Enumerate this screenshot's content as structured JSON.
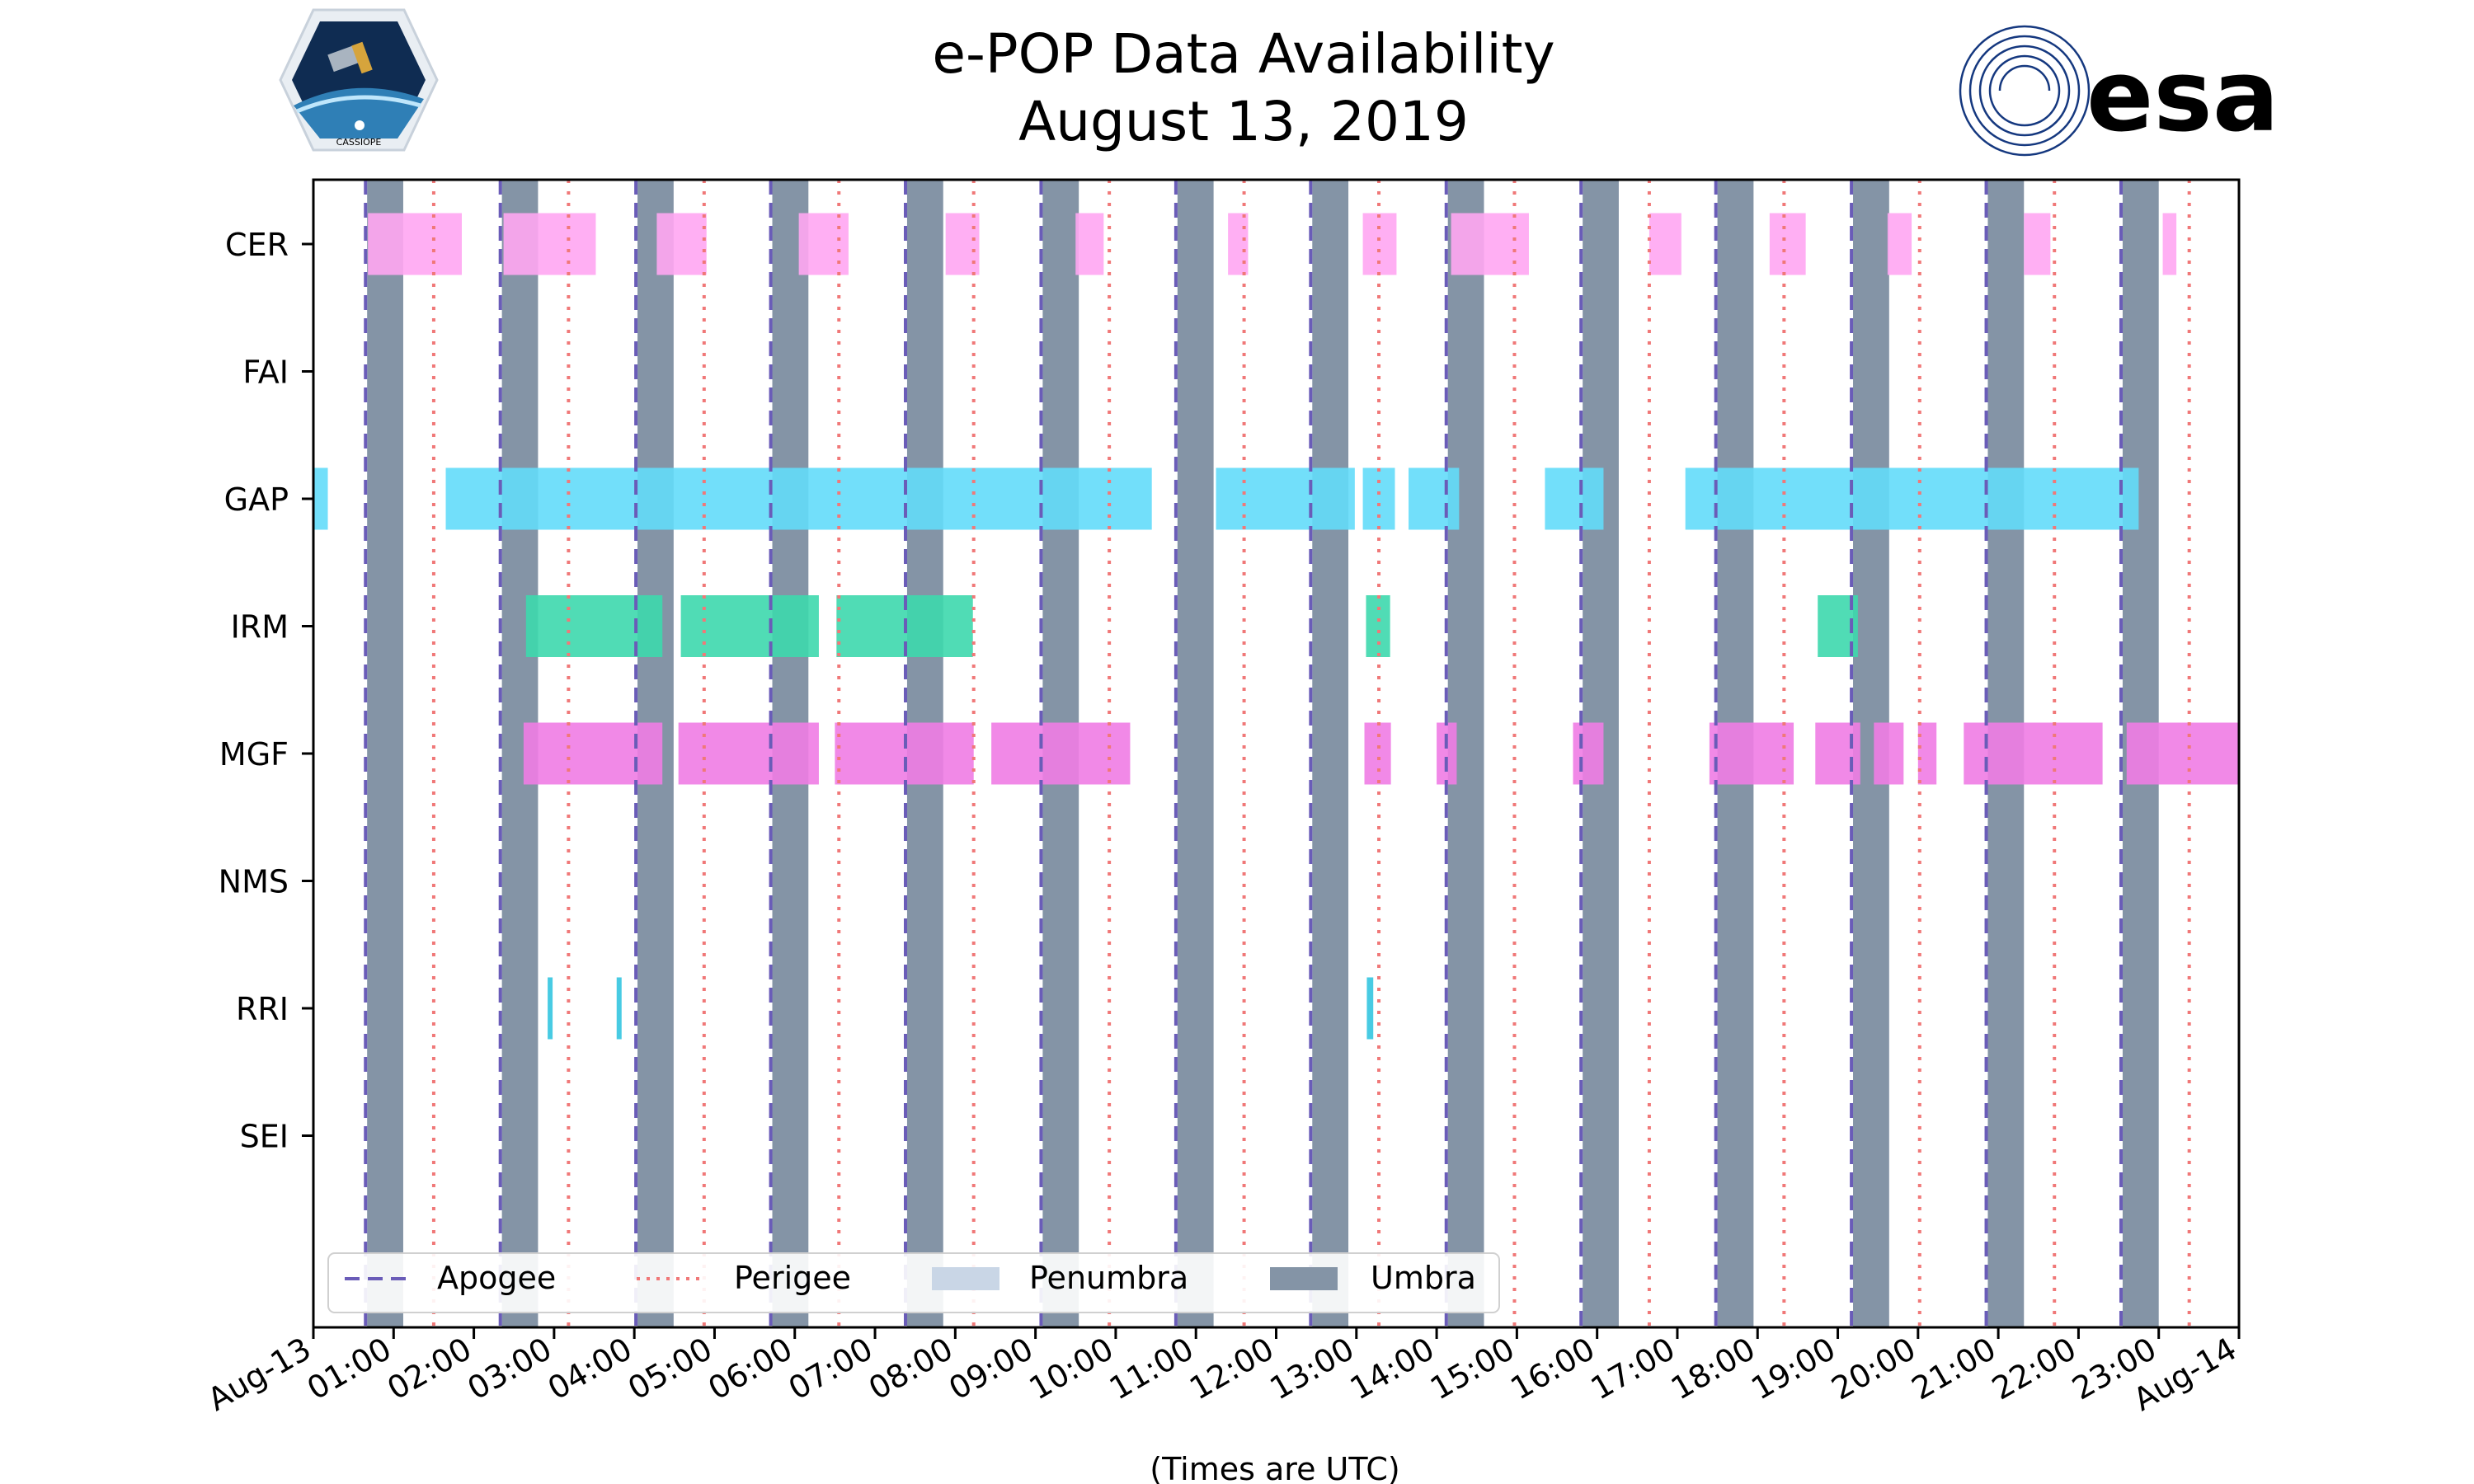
{
  "chart_data": {
    "type": "timeline",
    "title_line1": "e-POP Data Availability",
    "title_line2": "August 13, 2019",
    "xlabel": "(Times are UTC)",
    "x_unit": "hours since 2019-08-13 00:00 UTC",
    "xlim": [
      0,
      24
    ],
    "xtick_labels": [
      "Aug-13",
      "01:00",
      "02:00",
      "03:00",
      "04:00",
      "05:00",
      "06:00",
      "07:00",
      "08:00",
      "09:00",
      "10:00",
      "11:00",
      "12:00",
      "13:00",
      "14:00",
      "15:00",
      "16:00",
      "17:00",
      "18:00",
      "19:00",
      "20:00",
      "21:00",
      "22:00",
      "23:00",
      "Aug-14"
    ],
    "instruments": [
      "CER",
      "FAI",
      "GAP",
      "IRM",
      "MGF",
      "NMS",
      "RRI",
      "SEI"
    ],
    "apogee_times": [
      0.65,
      2.33,
      4.02,
      5.7,
      7.38,
      9.07,
      10.75,
      12.43,
      14.12,
      15.8,
      17.48,
      19.17,
      20.85,
      22.53
    ],
    "perigee_times": [
      1.5,
      3.18,
      4.87,
      6.55,
      8.23,
      9.92,
      11.6,
      13.28,
      14.97,
      16.65,
      18.33,
      20.02,
      21.7,
      23.38
    ],
    "umbra_intervals": [
      [
        0.67,
        1.12
      ],
      [
        2.35,
        2.8
      ],
      [
        4.04,
        4.49
      ],
      [
        5.72,
        6.17
      ],
      [
        7.4,
        7.85
      ],
      [
        9.09,
        9.54
      ],
      [
        10.77,
        11.22
      ],
      [
        12.45,
        12.9
      ],
      [
        14.14,
        14.59
      ],
      [
        15.82,
        16.27
      ],
      [
        17.5,
        17.95
      ],
      [
        19.19,
        19.64
      ],
      [
        20.87,
        21.32
      ],
      [
        22.55,
        23.0
      ]
    ],
    "availability": {
      "CER": [
        [
          0.68,
          1.85
        ],
        [
          2.37,
          3.52
        ],
        [
          4.28,
          4.9
        ],
        [
          6.05,
          6.67
        ],
        [
          7.88,
          8.3
        ],
        [
          9.5,
          9.85
        ],
        [
          11.4,
          11.65
        ],
        [
          13.08,
          13.5
        ],
        [
          14.18,
          15.15
        ],
        [
          16.65,
          17.05
        ],
        [
          18.15,
          18.6
        ],
        [
          19.62,
          19.92
        ],
        [
          21.32,
          21.65
        ],
        [
          23.05,
          23.22
        ]
      ],
      "FAI": [],
      "GAP": [
        [
          0.0,
          0.18
        ],
        [
          1.65,
          10.45
        ],
        [
          11.25,
          12.98
        ],
        [
          13.08,
          13.48
        ],
        [
          13.65,
          14.28
        ],
        [
          15.35,
          16.08
        ],
        [
          17.1,
          22.75
        ]
      ],
      "IRM": [
        [
          2.65,
          4.35
        ],
        [
          4.58,
          6.3
        ],
        [
          6.52,
          8.22
        ],
        [
          13.12,
          13.42
        ],
        [
          18.75,
          19.25
        ]
      ],
      "MGF": [
        [
          2.62,
          4.35
        ],
        [
          4.55,
          6.3
        ],
        [
          6.5,
          8.23
        ],
        [
          8.45,
          10.18
        ],
        [
          13.1,
          13.43
        ],
        [
          14.0,
          14.25
        ],
        [
          15.7,
          16.08
        ],
        [
          17.4,
          18.45
        ],
        [
          18.72,
          19.28
        ],
        [
          19.45,
          19.82
        ],
        [
          20.0,
          20.23
        ],
        [
          20.57,
          22.3
        ],
        [
          22.6,
          24.0
        ]
      ],
      "NMS": [],
      "RRI": [
        [
          2.92,
          2.98
        ],
        [
          3.78,
          3.84
        ],
        [
          13.13,
          13.21
        ]
      ],
      "SEI": []
    },
    "legend": [
      {
        "label": "Apogee",
        "style": "dashed",
        "color": "#6a5cb8"
      },
      {
        "label": "Perigee",
        "style": "dotted",
        "color": "#f07878"
      },
      {
        "label": "Penumbra",
        "style": "patch",
        "color": "#c9d6e6"
      },
      {
        "label": "Umbra",
        "style": "patch",
        "color": "#8494a6"
      }
    ],
    "legend_position": "lower-left",
    "colors": {
      "CER": "#ffa6f2",
      "GAP": "#63dcf9",
      "IRM": "#3dd8ad",
      "MGF": "#f07ce4",
      "RRI": "#34c5e0",
      "apogee": "#6a5cb8",
      "perigee": "#f07878",
      "penumbra": "#c9d6e6",
      "umbra": "#8494a6"
    }
  },
  "logos": {
    "left_caption": "CASSIOPE",
    "right_text": "esa"
  }
}
